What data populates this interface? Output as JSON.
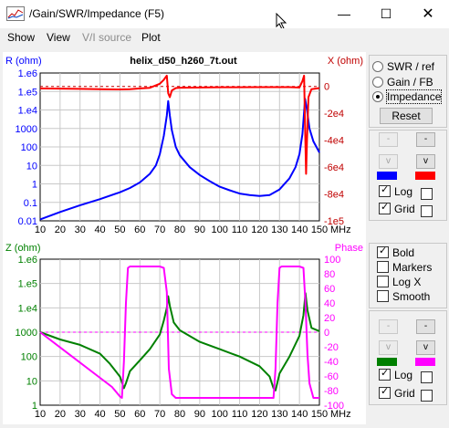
{
  "window": {
    "title": "/Gain/SWR/Impedance (F5)"
  },
  "menu": [
    "Show",
    "View",
    "V/I source",
    "Plot"
  ],
  "right_panel": {
    "modes": [
      {
        "label": "SWR / ref",
        "selected": false
      },
      {
        "label": "Gain / FB",
        "selected": false
      },
      {
        "label": "Impedance",
        "selected": true
      }
    ],
    "reset_label": "Reset",
    "top": {
      "color1": "#0000ff",
      "color2": "#ff0000",
      "log_label": "Log",
      "log_checked": true,
      "grid_label": "Grid",
      "grid_checked": true
    },
    "options": [
      {
        "label": "Bold",
        "checked": true
      },
      {
        "label": "Markers",
        "checked": false
      },
      {
        "label": "Log X",
        "checked": false
      },
      {
        "label": "Smooth",
        "checked": false
      }
    ],
    "bottom": {
      "color1": "#008000",
      "color2": "#ff00ff",
      "log_label": "Log",
      "log_checked": true,
      "grid_label": "Grid",
      "grid_checked": true
    }
  },
  "chart_data": [
    {
      "type": "line",
      "title": "helix_d50_h260_7t.out",
      "ylabel_left": "R (ohm)",
      "ylabel_right": "X (ohm)",
      "x_unit": "MHz",
      "x_ticks": [
        10,
        20,
        30,
        40,
        50,
        60,
        70,
        80,
        90,
        100,
        110,
        120,
        130,
        140,
        150
      ],
      "y_left_scale": "log",
      "y_left_ticks": [
        "1.e6",
        "1.e5",
        "1.e4",
        "1000",
        "100",
        "10",
        "1",
        "0.1",
        "0.01"
      ],
      "y_right_ticks": [
        "0",
        "-2e4",
        "-4e4",
        "-6e4",
        "-8e4",
        "-1e5"
      ],
      "ylim_right": [
        -100000,
        10000
      ],
      "grid": true,
      "series": [
        {
          "axis": "left",
          "color": "#0000ff",
          "points": [
            [
              10,
              0.012
            ],
            [
              20,
              0.03
            ],
            [
              30,
              0.07
            ],
            [
              40,
              0.15
            ],
            [
              50,
              0.35
            ],
            [
              55,
              0.6
            ],
            [
              60,
              1.2
            ],
            [
              65,
              3.5
            ],
            [
              68,
              10
            ],
            [
              70,
              40
            ],
            [
              72,
              400
            ],
            [
              73.5,
              5000
            ],
            [
              74.2,
              30000
            ],
            [
              75,
              5000
            ],
            [
              76,
              800
            ],
            [
              78,
              100
            ],
            [
              80,
              35
            ],
            [
              85,
              8
            ],
            [
              90,
              3
            ],
            [
              95,
              1.4
            ],
            [
              100,
              0.7
            ],
            [
              105,
              0.45
            ],
            [
              110,
              0.3
            ],
            [
              115,
              0.25
            ],
            [
              120,
              0.22
            ],
            [
              125,
              0.25
            ],
            [
              130,
              0.5
            ],
            [
              135,
              2
            ],
            [
              138,
              8
            ],
            [
              140,
              40
            ],
            [
              141.5,
              500
            ],
            [
              142.8,
              40000
            ],
            [
              143.8,
              10000
            ],
            [
              145,
              1000
            ],
            [
              147,
              200
            ],
            [
              150,
              50
            ]
          ]
        },
        {
          "axis": "right",
          "color": "#ff0000",
          "points": [
            [
              10,
              -1500
            ],
            [
              20,
              -1600
            ],
            [
              30,
              -1800
            ],
            [
              40,
              -2000
            ],
            [
              50,
              -2200
            ],
            [
              55,
              -2000
            ],
            [
              60,
              -1500
            ],
            [
              65,
              -1000
            ],
            [
              70,
              2000
            ],
            [
              72,
              5000
            ],
            [
              73.5,
              8000
            ],
            [
              74.2,
              -5000
            ],
            [
              75,
              -8000
            ],
            [
              76,
              -3000
            ],
            [
              78,
              -1200
            ],
            [
              80,
              -900
            ],
            [
              100,
              -600
            ],
            [
              120,
              -500
            ],
            [
              135,
              -500
            ],
            [
              140,
              -800
            ],
            [
              141.5,
              4000
            ],
            [
              142.3,
              8000
            ],
            [
              142.8,
              -30000
            ],
            [
              143.3,
              -65000
            ],
            [
              143.8,
              -40000
            ],
            [
              144.5,
              -8000
            ],
            [
              146,
              -2000
            ],
            [
              150,
              -1200
            ]
          ]
        }
      ]
    },
    {
      "type": "line",
      "ylabel_left": "Z (ohm)",
      "ylabel_right": "Phase",
      "x_unit": "MHz",
      "x_ticks": [
        10,
        20,
        30,
        40,
        50,
        60,
        70,
        80,
        90,
        100,
        110,
        120,
        130,
        140,
        150
      ],
      "y_left_scale": "log",
      "y_left_ticks": [
        "1.e6",
        "1.e5",
        "1.e4",
        "1000",
        "100",
        "10",
        "1"
      ],
      "y_right_ticks": [
        "100",
        "80",
        "60",
        "40",
        "20",
        "0",
        "-20",
        "-40",
        "-60",
        "-80",
        "-100"
      ],
      "ylim_right": [
        -100,
        100
      ],
      "grid": true,
      "series": [
        {
          "axis": "left",
          "color": "#008000",
          "points": [
            [
              10,
              1000
            ],
            [
              20,
              500
            ],
            [
              30,
              300
            ],
            [
              40,
              130
            ],
            [
              45,
              50
            ],
            [
              50,
              15
            ],
            [
              52,
              5
            ],
            [
              53,
              8
            ],
            [
              55,
              25
            ],
            [
              60,
              70
            ],
            [
              65,
              200
            ],
            [
              70,
              800
            ],
            [
              72,
              3000
            ],
            [
              73.5,
              10000
            ],
            [
              74.2,
              30000
            ],
            [
              75,
              12000
            ],
            [
              77,
              2500
            ],
            [
              80,
              1200
            ],
            [
              90,
              400
            ],
            [
              100,
              200
            ],
            [
              110,
              100
            ],
            [
              120,
              40
            ],
            [
              125,
              15
            ],
            [
              127,
              5
            ],
            [
              128,
              4
            ],
            [
              130,
              20
            ],
            [
              135,
              100
            ],
            [
              140,
              700
            ],
            [
              142,
              5000
            ],
            [
              143,
              40000
            ],
            [
              144,
              8000
            ],
            [
              146,
              1500
            ],
            [
              150,
              1100
            ]
          ]
        },
        {
          "axis": "right",
          "color": "#ff00ff",
          "points": [
            [
              10,
              0
            ],
            [
              46,
              -75
            ],
            [
              50,
              -88
            ],
            [
              51,
              -90
            ],
            [
              52,
              -40
            ],
            [
              53,
              40
            ],
            [
              54,
              88
            ],
            [
              55,
              90
            ],
            [
              70,
              90
            ],
            [
              72,
              88
            ],
            [
              73.5,
              55
            ],
            [
              74.5,
              -50
            ],
            [
              76,
              -85
            ],
            [
              78,
              -90
            ],
            [
              127,
              -90
            ],
            [
              128,
              -50
            ],
            [
              129,
              40
            ],
            [
              130,
              88
            ],
            [
              131,
              90
            ],
            [
              140,
              90
            ],
            [
              142,
              88
            ],
            [
              143,
              40
            ],
            [
              144,
              -30
            ],
            [
              145,
              -70
            ],
            [
              147,
              -90
            ],
            [
              150,
              -90
            ]
          ]
        }
      ]
    }
  ]
}
